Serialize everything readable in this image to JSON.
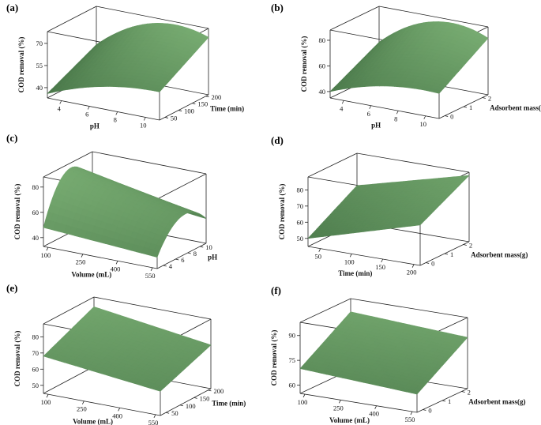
{
  "chart_data": [
    {
      "panel": "(a)",
      "type": "surface",
      "x_label": "pH",
      "y_label": "Time (min)",
      "z_label": "COD removal (%)",
      "x_ticks": [
        "4",
        "6",
        "8",
        "10"
      ],
      "y_ticks": [
        "50",
        "100",
        "150",
        "200"
      ],
      "z_ticks": [
        "40",
        "55",
        "70"
      ],
      "x_range": [
        3,
        11
      ],
      "y_range": [
        30,
        210
      ],
      "z_range": [
        33,
        78
      ],
      "corners": {
        "x0y0": 36,
        "x1y0": 50,
        "x0y1": 52,
        "x1y1": 66
      },
      "peak": {
        "x": 7.5,
        "z": 75
      },
      "grid": false
    },
    {
      "panel": "(b)",
      "type": "surface",
      "x_label": "pH",
      "y_label": "Adsorbent mass(g)",
      "z_label": "COD removal (%)",
      "x_ticks": [
        "4",
        "6",
        "8",
        "10"
      ],
      "y_ticks": [
        "0",
        "1",
        "2"
      ],
      "z_ticks": [
        "40",
        "60",
        "80"
      ],
      "x_range": [
        3,
        11
      ],
      "y_range": [
        -0.3,
        2.3
      ],
      "z_range": [
        35,
        88
      ],
      "corners": {
        "x0y0": 40,
        "x1y0": 52,
        "x0y1": 60,
        "x1y1": 72
      },
      "peak": {
        "x": 7.5,
        "z": 85
      },
      "grid": false
    },
    {
      "panel": "(c)",
      "type": "surface",
      "x_label": "Volume (mL)",
      "y_label": "pH",
      "z_label": "COD removal (%)",
      "x_ticks": [
        "100",
        "250",
        "400",
        "550"
      ],
      "y_ticks": [
        "4",
        "6",
        "8",
        "10"
      ],
      "z_ticks": [
        "40",
        "60",
        "80"
      ],
      "x_range": [
        80,
        570
      ],
      "y_range": [
        3,
        11
      ],
      "z_range": [
        33,
        88
      ],
      "corners": {
        "x0y0": 48,
        "x1y0": 42,
        "x0y1": 48,
        "x1y1": 44
      },
      "peak": {
        "y": 7.5,
        "z": 82
      },
      "grid": false
    },
    {
      "panel": "(d)",
      "type": "surface",
      "x_label": "Time (min)",
      "y_label": "Adsorbent mass(g)",
      "z_label": "COD removal (%)",
      "x_ticks": [
        "50",
        "100",
        "150",
        "200"
      ],
      "y_ticks": [
        "0",
        "1",
        "2"
      ],
      "z_ticks": [
        "50",
        "60",
        "70",
        "80"
      ],
      "x_range": [
        30,
        210
      ],
      "y_range": [
        -0.3,
        2.3
      ],
      "z_range": [
        45,
        88
      ],
      "corners": {
        "x0y0": 50,
        "x1y0": 70,
        "x0y1": 68,
        "x1y1": 86
      },
      "grid": false
    },
    {
      "panel": "(e)",
      "type": "surface",
      "x_label": "Volume (mL)",
      "y_label": "Time (min)",
      "z_label": "COD removal (%)",
      "x_ticks": [
        "100",
        "250",
        "400",
        "550"
      ],
      "y_ticks": [
        "50",
        "100",
        "150",
        "200"
      ],
      "z_ticks": [
        "50",
        "60",
        "70",
        "80"
      ],
      "x_range": [
        80,
        570
      ],
      "y_range": [
        30,
        210
      ],
      "z_range": [
        45,
        88
      ],
      "corners": {
        "x0y0": 68,
        "x1y0": 60,
        "x0y1": 82,
        "x1y1": 72
      },
      "grid": false
    },
    {
      "panel": "(f)",
      "type": "surface",
      "x_label": "Volume (mL)",
      "y_label": "Adsorbent mass(g)",
      "z_label": "COD removal (%)",
      "x_ticks": [
        "100",
        "250",
        "400",
        "550"
      ],
      "y_ticks": [
        "0",
        "1",
        "2"
      ],
      "z_ticks": [
        "60",
        "75",
        "90"
      ],
      "x_range": [
        80,
        570
      ],
      "y_range": [
        -0.3,
        2.3
      ],
      "z_range": [
        55,
        98
      ],
      "corners": {
        "x0y0": 70,
        "x1y0": 66,
        "x0y1": 90,
        "x1y1": 86
      },
      "grid": false
    }
  ]
}
